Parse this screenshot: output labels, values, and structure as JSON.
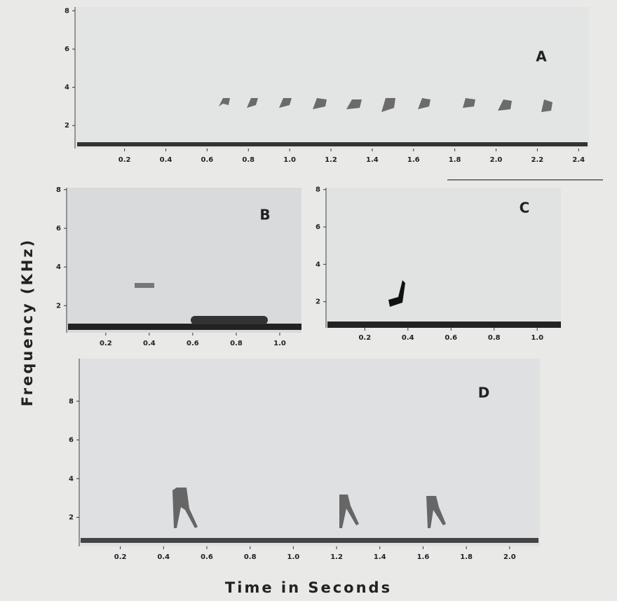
{
  "chart_data": [
    {
      "type": "spectrogram",
      "title": "A",
      "xlim": [
        -0.04,
        2.45
      ],
      "ylim": [
        0.8,
        8.2
      ],
      "xticks": [
        0.2,
        0.4,
        0.6,
        0.8,
        {
          "value": 1,
          "label": "1.0"
        },
        1.2,
        1.4,
        1.6,
        1.8,
        {
          "value": 2,
          "label": "2.0"
        },
        2.2,
        2.4
      ],
      "yticks": [
        2,
        4,
        6,
        8
      ]
    },
    {
      "type": "spectrogram",
      "title": "B",
      "xlim": [
        0.02,
        1.1
      ],
      "ylim": [
        0.6,
        8.1
      ],
      "xticks": [
        0.2,
        0.4,
        0.6,
        0.8,
        {
          "value": 1,
          "label": "1.0"
        }
      ],
      "yticks": [
        2,
        4,
        6,
        8
      ]
    },
    {
      "type": "spectrogram",
      "title": "C",
      "xlim": [
        0.02,
        1.11
      ],
      "ylim": [
        0.6,
        8.1
      ],
      "xticks": [
        0.2,
        0.4,
        0.6,
        0.8,
        {
          "value": 1,
          "label": "1.0"
        }
      ],
      "yticks": [
        2,
        4,
        6,
        8
      ]
    },
    {
      "type": "spectrogram",
      "title": "D",
      "xlim": [
        0.01,
        2.14
      ],
      "ylim": [
        0.5,
        10.2
      ],
      "xticks": [
        0.2,
        0.4,
        0.6,
        0.8,
        {
          "value": 1,
          "label": "1.0"
        },
        1.2,
        1.4,
        1.6,
        1.8,
        {
          "value": 2,
          "label": "2.0"
        }
      ],
      "yticks": [
        2,
        4,
        6,
        8
      ]
    }
  ],
  "ylabel": "Frequency (KHz)",
  "xlabel": "Time in Seconds"
}
